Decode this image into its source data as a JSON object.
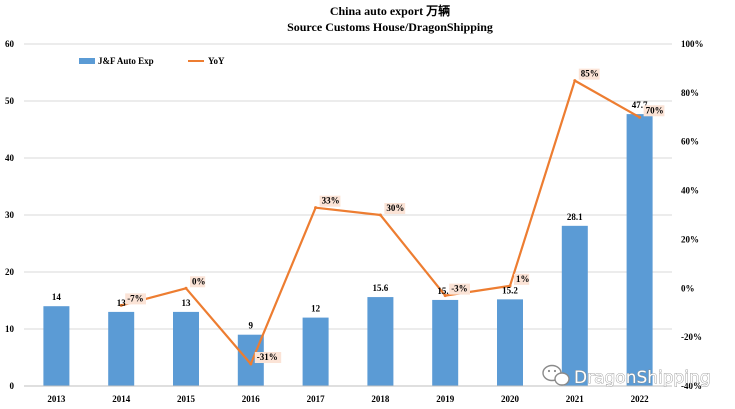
{
  "chart_data": {
    "type": "bar",
    "title": "China auto export 万辆",
    "subtitle": "Source Customs House/DragonShipping",
    "categories": [
      "2013",
      "2014",
      "2015",
      "2016",
      "2017",
      "2018",
      "2019",
      "2020",
      "2021",
      "2022"
    ],
    "series": [
      {
        "name": "J&F Auto Exp",
        "type": "bar",
        "axis": "left",
        "color": "#5b9bd5",
        "values": [
          14,
          13,
          13,
          9,
          12,
          15.6,
          15.1,
          15.2,
          28.1,
          47.7
        ],
        "labels": [
          "14",
          "13",
          "13",
          "9",
          "12",
          "15.6",
          "15.1",
          "15.2",
          "28.1",
          "47.7"
        ]
      },
      {
        "name": "YoY",
        "type": "line",
        "axis": "right",
        "color": "#ed7d31",
        "values": [
          null,
          -7,
          0,
          -31,
          33,
          30,
          -3,
          1,
          85,
          70
        ],
        "labels": [
          "",
          "-7%",
          "0%",
          "-31%",
          "33%",
          "30%",
          "-3%",
          "1%",
          "85%",
          "70%"
        ]
      }
    ],
    "ylim": [
      0,
      60
    ],
    "yticks": [
      "0",
      "10",
      "20",
      "30",
      "40",
      "50",
      "60"
    ],
    "y2lim": [
      -40,
      100
    ],
    "y2ticks": [
      "-40%",
      "-20%",
      "0%",
      "20%",
      "40%",
      "60%",
      "80%",
      "100%"
    ],
    "grid": true,
    "legend": "top-left"
  },
  "watermark": {
    "text": "DragonShipping",
    "icon": "wechat-icon"
  }
}
